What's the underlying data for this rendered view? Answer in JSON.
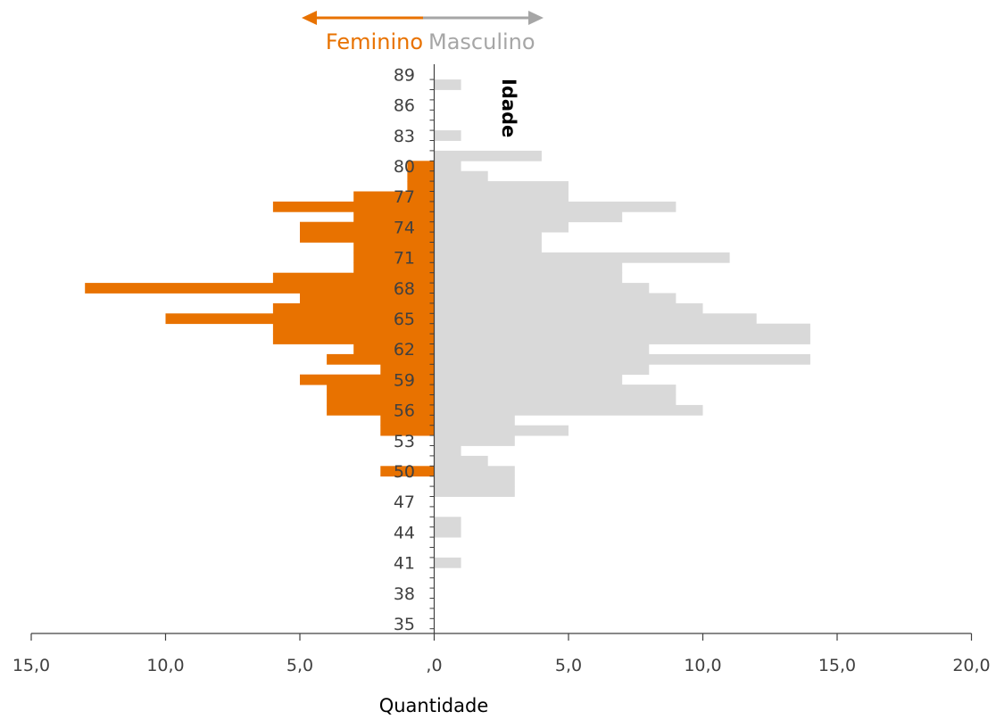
{
  "chart_data": {
    "type": "bar",
    "orientation": "horizontal",
    "subtype": "population-pyramid",
    "legend": {
      "left": "Feminino",
      "right": "Masculino",
      "placement": "top-center-arrows"
    },
    "ylabel": "Idade",
    "xlabel": "Quantidade",
    "xlim": [
      -15,
      20
    ],
    "x_ticks": [
      -15,
      -10,
      -5,
      0,
      5,
      10,
      15,
      20
    ],
    "x_tick_labels": [
      "15,0",
      "10,0",
      "5,0",
      ",0",
      "5,0",
      "10,0",
      "15,0",
      "20,0"
    ],
    "y_tick_labels": [
      "35",
      "38",
      "41",
      "44",
      "47",
      "50",
      "53",
      "56",
      "59",
      "62",
      "65",
      "68",
      "71",
      "74",
      "77",
      "80",
      "83",
      "86",
      "89"
    ],
    "ages": [
      35,
      36,
      37,
      38,
      39,
      40,
      41,
      42,
      43,
      44,
      45,
      46,
      47,
      48,
      49,
      50,
      51,
      52,
      53,
      54,
      55,
      56,
      57,
      58,
      59,
      60,
      61,
      62,
      63,
      64,
      65,
      66,
      67,
      68,
      69,
      70,
      71,
      72,
      73,
      74,
      75,
      76,
      77,
      78,
      79,
      80,
      81,
      82,
      83,
      84,
      85,
      86,
      87,
      88,
      89
    ],
    "series": [
      {
        "name": "Feminino",
        "color": "#E87200",
        "values": [
          0,
          0,
          0,
          0,
          0,
          0,
          0,
          0,
          0,
          0,
          0,
          0,
          0,
          0,
          0,
          2,
          0,
          0,
          0,
          2,
          2,
          4,
          4,
          4,
          5,
          2,
          4,
          3,
          6,
          6,
          10,
          6,
          5,
          13,
          6,
          3,
          3,
          3,
          5,
          5,
          3,
          6,
          3,
          1,
          1,
          1,
          0,
          0,
          0,
          0,
          0,
          0,
          0,
          0,
          0
        ]
      },
      {
        "name": "Masculino",
        "color": "#D9D9D9",
        "values": [
          0,
          0,
          0,
          0,
          0,
          0,
          1,
          0,
          0,
          1,
          1,
          0,
          0,
          3,
          3,
          3,
          2,
          1,
          3,
          5,
          3,
          10,
          9,
          9,
          7,
          8,
          14,
          8,
          14,
          14,
          12,
          10,
          9,
          8,
          7,
          7,
          11,
          4,
          4,
          5,
          7,
          9,
          5,
          5,
          2,
          1,
          4,
          0,
          1,
          0,
          0,
          0,
          0,
          1,
          0
        ]
      }
    ],
    "grid": false,
    "colors": {
      "feminino": "#E87200",
      "masculino": "#D9D9D9",
      "masculino_label": "#A6A6A6",
      "axis": "#404040"
    }
  }
}
